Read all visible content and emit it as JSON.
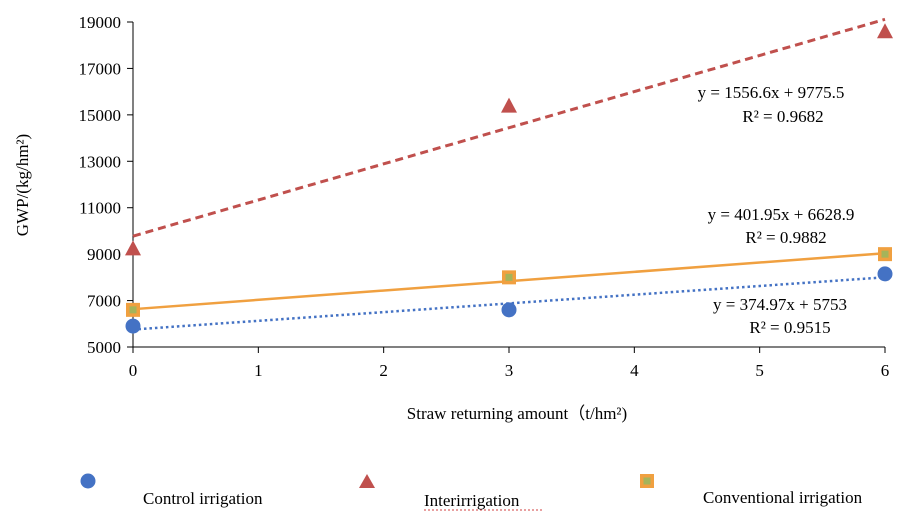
{
  "chart_data": {
    "type": "scatter",
    "xlabel": "Straw returning amount（t/hm²)",
    "ylabel": "GWP/(kg/hm²)",
    "xlim": [
      0,
      6
    ],
    "ylim": [
      5000,
      19000
    ],
    "x_ticks": [
      0,
      1,
      2,
      3,
      4,
      5,
      6
    ],
    "y_ticks": [
      5000,
      7000,
      9000,
      11000,
      13000,
      15000,
      17000,
      19000
    ],
    "grid": false,
    "legend_position": "bottom",
    "series": [
      {
        "name": "Control irrigation",
        "color": "#4472c4",
        "marker": "circle",
        "x": [
          0,
          3,
          6
        ],
        "y": [
          5900,
          6600,
          8150
        ],
        "trend": {
          "slope": 374.97,
          "intercept": 5753,
          "style": "dotted",
          "equation": "y = 374.97x + 5753",
          "r2": "R² = 0.9515"
        }
      },
      {
        "name": "Interirrigation",
        "color": "#c0504d",
        "marker": "triangle",
        "x": [
          0,
          3,
          6
        ],
        "y": [
          9250,
          15400,
          18600
        ],
        "trend": {
          "slope": 1556.6,
          "intercept": 9775.5,
          "style": "dashed",
          "equation": "y = 1556.6x + 9775.5",
          "r2": "R² = 0.9682"
        }
      },
      {
        "name": "Conventional irrigation",
        "color": "#f0a040",
        "marker": "square",
        "x": [
          0,
          3,
          6
        ],
        "y": [
          6600,
          8000,
          9000
        ],
        "trend": {
          "slope": 401.95,
          "intercept": 6628.9,
          "style": "solid",
          "equation": "y = 401.95x + 6628.9",
          "r2": "R² = 0.9882"
        }
      }
    ]
  }
}
